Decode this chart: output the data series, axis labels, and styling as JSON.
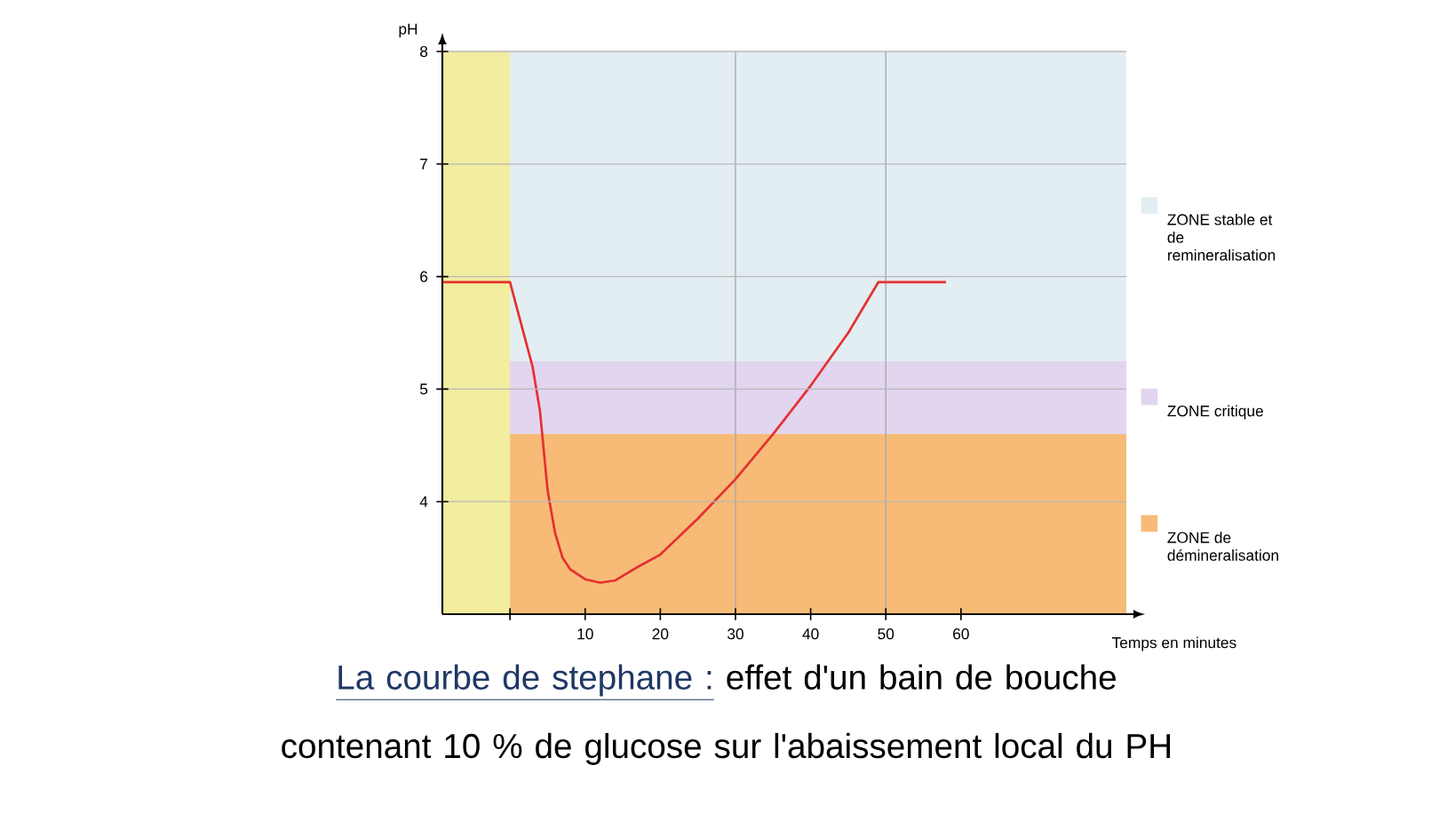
{
  "chart_data": {
    "type": "line",
    "title": "La courbe de stephane :",
    "subtitle": "effet d'un bain de bouche contenant 10 % de glucose sur l'abaissement local du PH",
    "xlabel": "Temps en minutes",
    "ylabel": "pH",
    "xlim": [
      -9,
      82
    ],
    "ylim": [
      3,
      8
    ],
    "xticks": [
      {
        "value": 0,
        "label": null
      },
      10,
      20,
      30,
      40,
      50,
      60
    ],
    "yticks": [
      4,
      5,
      6,
      7,
      8
    ],
    "grid": "y",
    "marker": "none",
    "line_style": "solid",
    "bands": [
      {
        "axis": "y",
        "from": 5.25,
        "to": 8,
        "label": "ZONE stable et de remineralisation",
        "color": "#e3eef3"
      },
      {
        "axis": "y",
        "from": 4.6,
        "to": 5.25,
        "label": "ZONE critique",
        "color": "#e2d5ef"
      },
      {
        "axis": "y",
        "from": 3,
        "to": 4.6,
        "label": "ZONE de démineralisation",
        "color": "#f7bb77"
      },
      {
        "axis": "x",
        "from": -9,
        "to": 0,
        "color": "#f2ed9f"
      }
    ],
    "ref_lines": [
      {
        "axis": "x",
        "value": 30,
        "color": "#a8a8a8"
      },
      {
        "axis": "x",
        "value": 50,
        "color": "#a8a8a8"
      }
    ],
    "series": [
      {
        "color": "#e53030",
        "x": [
          -9,
          0,
          1,
          2,
          3,
          4,
          5,
          6,
          7,
          8,
          10,
          12,
          14,
          17,
          20,
          25,
          30,
          35,
          40,
          45,
          49,
          58
        ],
        "values": [
          5.95,
          5.95,
          5.7,
          5.45,
          5.2,
          4.8,
          4.1,
          3.72,
          3.5,
          3.4,
          3.31,
          3.28,
          3.3,
          3.42,
          3.53,
          3.85,
          4.2,
          4.6,
          5.03,
          5.5,
          5.95,
          5.95
        ]
      }
    ]
  }
}
